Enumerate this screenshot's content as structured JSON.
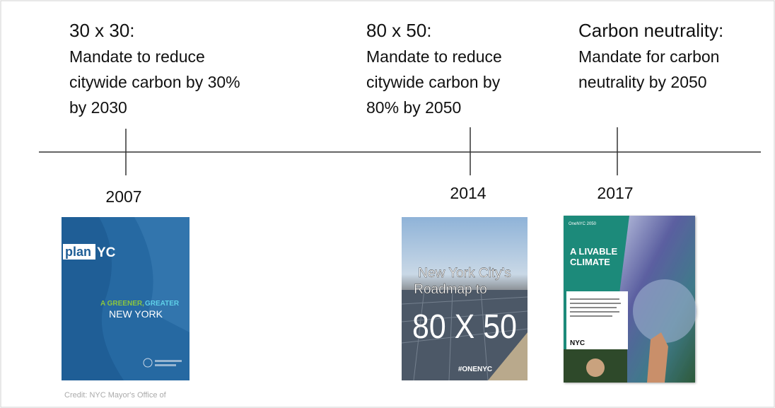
{
  "events": [
    {
      "heading": "30 x 30:",
      "description": [
        "Mandate to reduce",
        "citywide carbon by 30%",
        "by 2030"
      ],
      "year": "2007",
      "cover": {
        "logo_plan": "plan",
        "logo_yc": "YC",
        "tagline_green": "A GREENER,",
        "tagline_cyan": "GREATER",
        "tagline_2": "NEW YORK"
      }
    },
    {
      "heading": "80 x 50:",
      "description": [
        "Mandate to reduce",
        "citywide carbon by",
        "80% by 2050"
      ],
      "year": "2014",
      "cover": {
        "title_1": "New York City's",
        "title_2": "Roadmap to",
        "big": "80 X 50",
        "hashtag": "#ONENYC"
      }
    },
    {
      "heading": "Carbon neutrality:",
      "description": [
        "Mandate for carbon",
        "neutrality by 2050"
      ],
      "year": "2017",
      "cover": {
        "series": "OneNYC 2050",
        "title_1": "A LIVABLE",
        "title_2": "CLIMATE",
        "logo": "NYC"
      }
    }
  ],
  "credit": "Credit: NYC Mayor's Office of"
}
